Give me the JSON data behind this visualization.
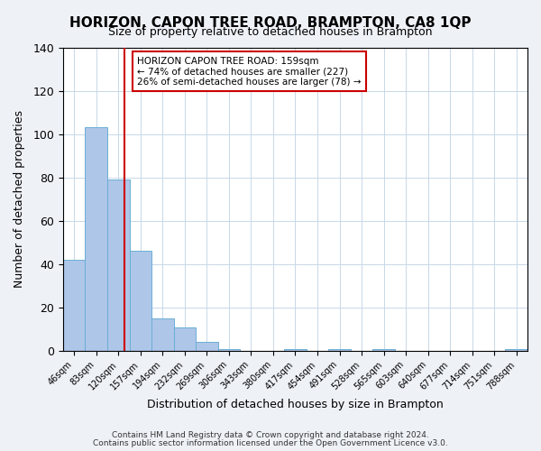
{
  "title": "HORIZON, CAPON TREE ROAD, BRAMPTON, CA8 1QP",
  "subtitle": "Size of property relative to detached houses in Brampton",
  "xlabel": "Distribution of detached houses by size in Brampton",
  "ylabel": "Number of detached properties",
  "footnote1": "Contains HM Land Registry data © Crown copyright and database right 2024.",
  "footnote2": "Contains public sector information licensed under the Open Government Licence v3.0.",
  "bin_labels": [
    "46sqm",
    "83sqm",
    "120sqm",
    "157sqm",
    "194sqm",
    "232sqm",
    "269sqm",
    "306sqm",
    "343sqm",
    "380sqm",
    "417sqm",
    "454sqm",
    "491sqm",
    "528sqm",
    "565sqm",
    "603sqm",
    "640sqm",
    "677sqm",
    "714sqm",
    "751sqm",
    "788sqm"
  ],
  "bar_values": [
    42,
    103,
    79,
    46,
    15,
    11,
    4,
    1,
    0,
    0,
    1,
    0,
    1,
    0,
    1,
    0,
    0,
    0,
    0,
    0,
    1
  ],
  "bar_color": "#aec6e8",
  "bar_edge_color": "#6aaed6",
  "ylim": [
    0,
    140
  ],
  "yticks": [
    0,
    20,
    40,
    60,
    80,
    100,
    120,
    140
  ],
  "vline_x": 2.78,
  "vline_color": "#cc0000",
  "annotation_box_text": [
    "HORIZON CAPON TREE ROAD: 159sqm",
    "← 74% of detached houses are smaller (227)",
    "26% of semi-detached houses are larger (78) →"
  ],
  "bg_color": "#eef2f7",
  "plot_bg_color": "#ffffff",
  "grid_color": "#c8d8e8"
}
